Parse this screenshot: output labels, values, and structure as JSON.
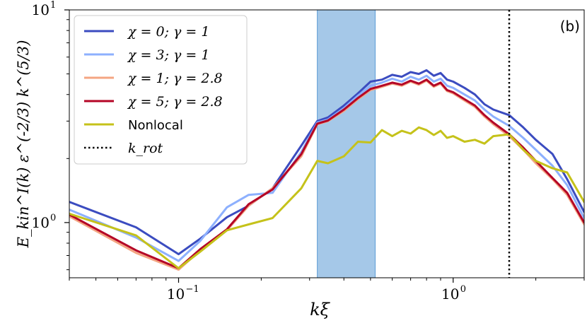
{
  "chart_data": {
    "type": "line",
    "panel_label": "(b)",
    "xlabel": "kξ",
    "ylabel": "E_kin^I(k) ε^(-2/3) k^(5/3)",
    "xscale": "log",
    "yscale": "log",
    "xlim": [
      0.04,
      3.0
    ],
    "ylim": [
      0.55,
      10.0
    ],
    "x_ticks": [
      {
        "value": 0.1,
        "base": "10",
        "exp": "−1"
      },
      {
        "value": 1.0,
        "base": "10",
        "exp": "0"
      }
    ],
    "y_ticks": [
      {
        "value": 1.0,
        "base": "10",
        "exp": "0"
      },
      {
        "value": 10.0,
        "base": "10",
        "exp": "1"
      }
    ],
    "shaded_band": {
      "x_start": 0.32,
      "x_end": 0.52,
      "color": "#5b9bd5"
    },
    "vline": {
      "x": 1.6,
      "label": "k_rot",
      "style": "dotted",
      "color": "#000000"
    },
    "series": [
      {
        "name": "χ = 0; γ = 1",
        "color": "#3b4cc0",
        "x": [
          0.04,
          0.07,
          0.1,
          0.12,
          0.15,
          0.18,
          0.22,
          0.28,
          0.32,
          0.35,
          0.4,
          0.45,
          0.5,
          0.55,
          0.6,
          0.65,
          0.7,
          0.75,
          0.8,
          0.85,
          0.9,
          0.95,
          1.0,
          1.1,
          1.2,
          1.3,
          1.4,
          1.6,
          1.8,
          2.0,
          2.3,
          2.6,
          3.0
        ],
        "y": [
          1.25,
          0.95,
          0.71,
          0.84,
          1.06,
          1.2,
          1.45,
          2.3,
          3.0,
          3.12,
          3.55,
          4.05,
          4.6,
          4.7,
          4.95,
          4.85,
          5.1,
          5.0,
          5.2,
          4.9,
          5.05,
          4.7,
          4.6,
          4.3,
          4.0,
          3.6,
          3.4,
          3.2,
          2.8,
          2.45,
          2.1,
          1.6,
          1.12
        ]
      },
      {
        "name": "χ = 3; γ = 1",
        "color": "#8db0fe",
        "x": [
          0.04,
          0.07,
          0.1,
          0.12,
          0.15,
          0.18,
          0.22,
          0.28,
          0.32,
          0.35,
          0.4,
          0.45,
          0.5,
          0.55,
          0.6,
          0.65,
          0.7,
          0.75,
          0.8,
          0.85,
          0.9,
          0.95,
          1.0,
          1.1,
          1.2,
          1.3,
          1.4,
          1.6,
          1.8,
          2.0,
          2.3,
          2.6,
          3.0
        ],
        "y": [
          1.15,
          0.85,
          0.66,
          0.82,
          1.18,
          1.35,
          1.38,
          2.15,
          2.95,
          3.05,
          3.45,
          3.95,
          4.4,
          4.55,
          4.75,
          4.6,
          4.85,
          4.7,
          4.9,
          4.6,
          4.75,
          4.4,
          4.3,
          4.0,
          3.75,
          3.4,
          3.15,
          2.85,
          2.5,
          2.2,
          1.85,
          1.5,
          1.05
        ]
      },
      {
        "name": "χ = 1; γ = 2.8",
        "color": "#f4a582",
        "x": [
          0.04,
          0.07,
          0.1,
          0.12,
          0.15,
          0.18,
          0.22,
          0.28,
          0.32,
          0.35,
          0.4,
          0.45,
          0.5,
          0.55,
          0.6,
          0.65,
          0.7,
          0.75,
          0.8,
          0.85,
          0.9,
          0.95,
          1.0,
          1.1,
          1.2,
          1.3,
          1.4,
          1.6,
          1.8,
          2.0,
          2.3,
          2.6,
          3.0
        ],
        "y": [
          1.07,
          0.72,
          0.6,
          0.74,
          0.92,
          1.2,
          1.45,
          2.05,
          2.9,
          3.0,
          3.35,
          3.8,
          4.2,
          4.35,
          4.5,
          4.4,
          4.6,
          4.45,
          4.65,
          4.35,
          4.5,
          4.15,
          4.05,
          3.75,
          3.5,
          3.15,
          2.9,
          2.55,
          2.2,
          1.9,
          1.6,
          1.35,
          0.98
        ]
      },
      {
        "name": "χ = 5; γ = 2.8",
        "color": "#b40426",
        "x": [
          0.04,
          0.07,
          0.1,
          0.12,
          0.15,
          0.18,
          0.22,
          0.28,
          0.32,
          0.35,
          0.4,
          0.45,
          0.5,
          0.55,
          0.6,
          0.65,
          0.7,
          0.75,
          0.8,
          0.85,
          0.9,
          0.95,
          1.0,
          1.1,
          1.2,
          1.3,
          1.4,
          1.6,
          1.8,
          2.0,
          2.3,
          2.6,
          3.0
        ],
        "y": [
          1.09,
          0.74,
          0.61,
          0.75,
          0.93,
          1.22,
          1.43,
          2.1,
          2.92,
          3.02,
          3.4,
          3.85,
          4.25,
          4.4,
          4.55,
          4.45,
          4.65,
          4.5,
          4.7,
          4.4,
          4.55,
          4.2,
          4.1,
          3.8,
          3.55,
          3.2,
          2.95,
          2.6,
          2.25,
          1.95,
          1.62,
          1.38,
          1.0
        ]
      },
      {
        "name": "Nonlocal",
        "color": "#c5c21a",
        "x": [
          0.04,
          0.07,
          0.1,
          0.12,
          0.15,
          0.18,
          0.22,
          0.28,
          0.32,
          0.35,
          0.4,
          0.45,
          0.5,
          0.55,
          0.6,
          0.65,
          0.7,
          0.75,
          0.8,
          0.85,
          0.9,
          0.95,
          1.0,
          1.1,
          1.2,
          1.3,
          1.4,
          1.6,
          1.8,
          2.0,
          2.3,
          2.6,
          3.0
        ],
        "y": [
          1.1,
          0.87,
          0.61,
          0.73,
          0.92,
          0.98,
          1.05,
          1.45,
          1.95,
          1.9,
          2.05,
          2.4,
          2.38,
          2.72,
          2.55,
          2.7,
          2.62,
          2.8,
          2.72,
          2.58,
          2.7,
          2.5,
          2.55,
          2.4,
          2.45,
          2.35,
          2.55,
          2.6,
          2.2,
          1.95,
          1.8,
          1.72,
          1.25
        ]
      }
    ],
    "legend": {
      "position": "top-left",
      "entries": [
        {
          "label": "χ = 0; γ = 1",
          "color": "#3b4cc0",
          "style": "solid"
        },
        {
          "label": "χ = 3; γ = 1",
          "color": "#8db0fe",
          "style": "solid"
        },
        {
          "label": "χ = 1; γ = 2.8",
          "color": "#f4a582",
          "style": "solid"
        },
        {
          "label": "χ = 5; γ = 2.8",
          "color": "#b40426",
          "style": "solid"
        },
        {
          "label": "Nonlocal",
          "color": "#c5c21a",
          "style": "solid"
        },
        {
          "label": "k_rot",
          "color": "#000000",
          "style": "dotted"
        }
      ]
    }
  }
}
